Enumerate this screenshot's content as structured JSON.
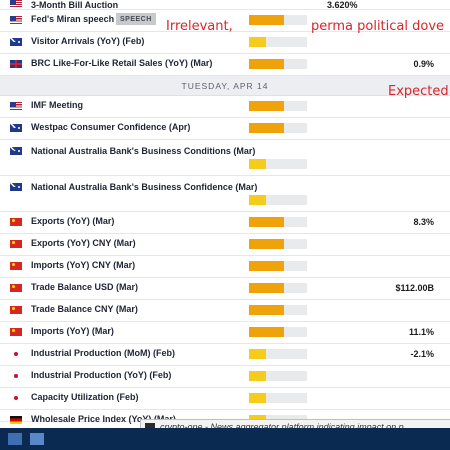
{
  "top_partial": {
    "name": "3-Month Bill Auction",
    "actual": "3.620%",
    "flag": "us"
  },
  "rows_before": [
    {
      "id": "feds-miran",
      "flag": "us",
      "name": "Fed's Miran speech",
      "badge": "SPEECH",
      "impact": 0.6,
      "impact_color": "#f0a20a",
      "actual": ""
    },
    {
      "id": "visitor-arrivals",
      "flag": "au",
      "name": "Visitor Arrivals (YoY) (Feb)",
      "impact": 0.3,
      "impact_color": "#f5cc1c",
      "actual": ""
    },
    {
      "id": "brc-lfl",
      "flag": "gb",
      "name": "BRC Like-For-Like Retail Sales (YoY) (Mar)",
      "impact": 0.6,
      "impact_color": "#f0a20a",
      "actual": "0.9%"
    }
  ],
  "day_header": "TUESDAY, APR 14",
  "rows_after": [
    {
      "id": "imf-meeting",
      "flag": "us",
      "name": "IMF Meeting",
      "impact": 0.6,
      "impact_color": "#f0a20a",
      "actual": ""
    },
    {
      "id": "westpac-confidence",
      "flag": "au",
      "name": "Westpac Consumer Confidence (Apr)",
      "impact": 0.6,
      "impact_color": "#f0a20a",
      "actual": ""
    },
    {
      "id": "nab-conditions",
      "flag": "au",
      "name": "National Australia Bank's Business Conditions (Mar)",
      "impact": 0.3,
      "impact_color": "#f5cc1c",
      "actual": "",
      "tall": true
    },
    {
      "id": "nab-confidence",
      "flag": "au",
      "name": "National Australia Bank's Business Confidence (Mar)",
      "impact": 0.3,
      "impact_color": "#f5cc1c",
      "actual": "",
      "tall": true
    },
    {
      "id": "exports-yoy",
      "flag": "cn",
      "name": "Exports (YoY) (Mar)",
      "impact": 0.6,
      "impact_color": "#f0a20a",
      "actual": "8.3%"
    },
    {
      "id": "exports-cny",
      "flag": "cn",
      "name": "Exports (YoY) CNY (Mar)",
      "impact": 0.6,
      "impact_color": "#f0a20a",
      "actual": ""
    },
    {
      "id": "imports-cny",
      "flag": "cn",
      "name": "Imports (YoY) CNY (Mar)",
      "impact": 0.6,
      "impact_color": "#f0a20a",
      "actual": ""
    },
    {
      "id": "trade-balance-usd",
      "flag": "cn",
      "name": "Trade Balance USD (Mar)",
      "impact": 0.6,
      "impact_color": "#f0a20a",
      "actual": "$112.00B"
    },
    {
      "id": "trade-balance-cny",
      "flag": "cn",
      "name": "Trade Balance CNY (Mar)",
      "impact": 0.6,
      "impact_color": "#f0a20a",
      "actual": ""
    },
    {
      "id": "imports-yoy",
      "flag": "cn",
      "name": "Imports (YoY) (Mar)",
      "impact": 0.6,
      "impact_color": "#f0a20a",
      "actual": "11.1%"
    },
    {
      "id": "industrial-mom",
      "flag": "jp",
      "name": "Industrial Production (MoM) (Feb)",
      "impact": 0.3,
      "impact_color": "#f5cc1c",
      "actual": "-2.1%"
    },
    {
      "id": "industrial-yoy",
      "flag": "jp",
      "name": "Industrial Production (YoY) (Feb)",
      "impact": 0.3,
      "impact_color": "#f5cc1c",
      "actual": ""
    },
    {
      "id": "capacity-utilization",
      "flag": "jp",
      "name": "Capacity Utilization (Feb)",
      "impact": 0.3,
      "impact_color": "#f5cc1c",
      "actual": ""
    },
    {
      "id": "wholesale-prices",
      "flag": "de",
      "name": "Wholesale Price Index (YoY) (Mar)",
      "impact": 0.3,
      "impact_color": "#f5cc1c",
      "actual": "",
      "cut": true
    }
  ],
  "annotations": {
    "irrelevant": "Irrelevant,",
    "dove": "perma political dove",
    "expected": "Expected"
  },
  "tooltip": "crypto-one - News aggregator platform indicating impact on p"
}
